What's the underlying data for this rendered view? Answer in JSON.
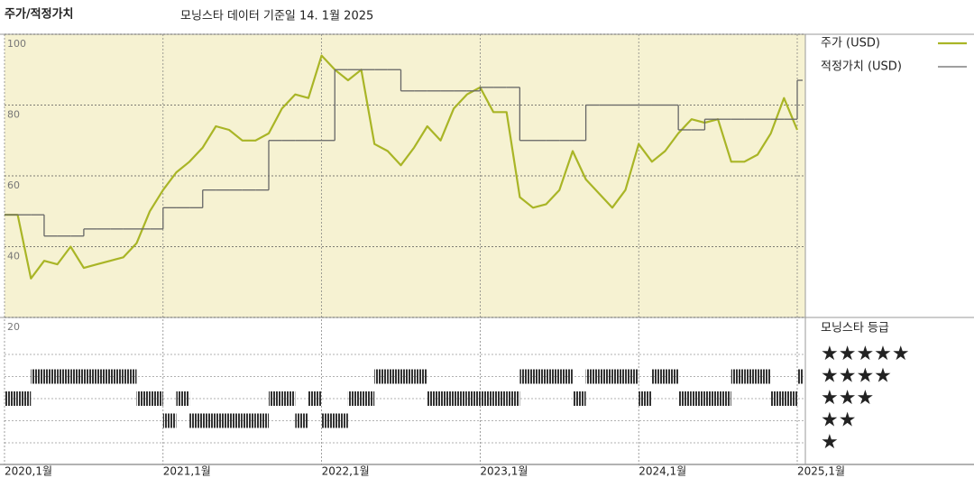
{
  "chart_data": {
    "type": "line",
    "title": "주가/적정가치",
    "subtitle": "모닝스타 데이터 기준일 14. 1월 2025",
    "x": [
      "2020-01",
      "2020-02",
      "2020-03",
      "2020-04",
      "2020-05",
      "2020-06",
      "2020-07",
      "2020-08",
      "2020-09",
      "2020-10",
      "2020-11",
      "2020-12",
      "2021-01",
      "2021-02",
      "2021-03",
      "2021-04",
      "2021-05",
      "2021-06",
      "2021-07",
      "2021-08",
      "2021-09",
      "2021-10",
      "2021-11",
      "2021-12",
      "2022-01",
      "2022-02",
      "2022-03",
      "2022-04",
      "2022-05",
      "2022-06",
      "2022-07",
      "2022-08",
      "2022-09",
      "2022-10",
      "2022-11",
      "2022-12",
      "2023-01",
      "2023-02",
      "2023-03",
      "2023-04",
      "2023-05",
      "2023-06",
      "2023-07",
      "2023-08",
      "2023-09",
      "2023-10",
      "2023-11",
      "2023-12",
      "2024-01",
      "2024-02",
      "2024-03",
      "2024-04",
      "2024-05",
      "2024-06",
      "2024-07",
      "2024-08",
      "2024-09",
      "2024-10",
      "2024-11",
      "2024-12",
      "2025-01"
    ],
    "xlim": [
      "2020-01",
      "2025-01"
    ],
    "xticks": [
      {
        "value": "2020-01",
        "label": "2020,1월"
      },
      {
        "value": "2021-01",
        "label": "2021,1월"
      },
      {
        "value": "2022-01",
        "label": "2022,1월"
      },
      {
        "value": "2023-01",
        "label": "2023,1월"
      },
      {
        "value": "2024-01",
        "label": "2024,1월"
      },
      {
        "value": "2025-01",
        "label": "2025,1월"
      }
    ],
    "ylim": [
      20,
      100
    ],
    "yticks": [
      20,
      40,
      60,
      80,
      100
    ],
    "grid": true,
    "series": [
      {
        "name": "주가 (USD)",
        "color": "#a9b526",
        "line_style": "solid",
        "values": [
          49,
          49,
          31,
          36,
          35,
          40,
          34,
          35,
          36,
          37,
          41,
          50,
          56,
          61,
          64,
          68,
          74,
          73,
          70,
          70,
          72,
          79,
          83,
          82,
          94,
          90,
          87,
          90,
          69,
          67,
          63,
          68,
          74,
          70,
          79,
          83,
          85,
          78,
          78,
          54,
          51,
          52,
          56,
          67,
          59,
          55,
          51,
          56,
          69,
          64,
          67,
          72,
          76,
          75,
          76,
          64,
          64,
          66,
          72,
          82,
          73
        ]
      },
      {
        "name": "적정가치 (USD)",
        "color": "#666666",
        "line_style": "step",
        "values": [
          49,
          49,
          49,
          43,
          43,
          43,
          45,
          45,
          45,
          45,
          45,
          45,
          51,
          51,
          51,
          56,
          56,
          56,
          56,
          56,
          70,
          70,
          70,
          70,
          70,
          90,
          90,
          90,
          90,
          90,
          84,
          84,
          84,
          84,
          84,
          84,
          85,
          85,
          85,
          70,
          70,
          70,
          70,
          70,
          80,
          80,
          80,
          80,
          80,
          80,
          80,
          73,
          73,
          76,
          76,
          76,
          76,
          76,
          76,
          76,
          87
        ]
      }
    ],
    "ratings": {
      "title": "모닝스타 등급",
      "levels": [
        {
          "value": 5,
          "label": "★★★★★"
        },
        {
          "value": 4,
          "label": "★★★★"
        },
        {
          "value": 3,
          "label": "★★★"
        },
        {
          "value": 2,
          "label": "★★"
        },
        {
          "value": 1,
          "label": "★"
        }
      ],
      "values": [
        3,
        3,
        4,
        4,
        4,
        4,
        4,
        4,
        4,
        4,
        3,
        3,
        2,
        3,
        2,
        2,
        2,
        2,
        2,
        2,
        3,
        3,
        2,
        3,
        2,
        2,
        3,
        3,
        4,
        4,
        4,
        4,
        3,
        3,
        3,
        3,
        3,
        3,
        3,
        4,
        4,
        4,
        4,
        3,
        4,
        4,
        4,
        4,
        3,
        4,
        4,
        3,
        3,
        3,
        3,
        4,
        4,
        4,
        3,
        3,
        4
      ]
    }
  }
}
